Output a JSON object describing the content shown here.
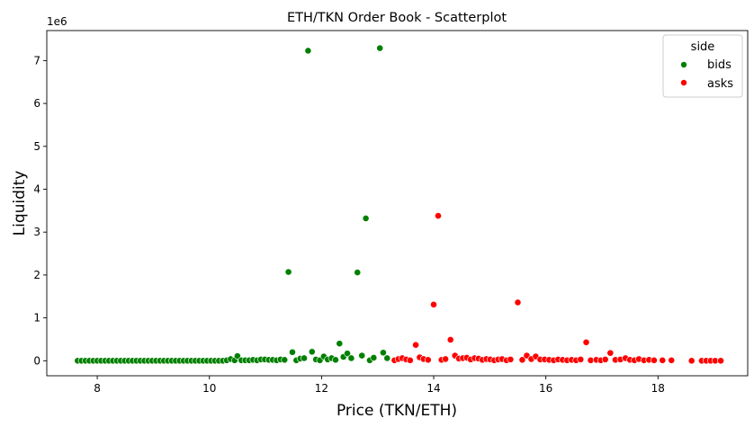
{
  "chart_data": {
    "type": "scatter",
    "title": "ETH/TKN Order Book - Scatterplot",
    "xlabel": "Price (TKN/ETH)",
    "ylabel": "Liquidity",
    "y_multiplier_label": "1e6",
    "xlim": [
      7.1,
      19.6
    ],
    "ylim": [
      -350000,
      7700000
    ],
    "x_ticks": [
      8,
      10,
      12,
      14,
      16,
      18
    ],
    "x_tick_labels": [
      "8",
      "10",
      "12",
      "14",
      "16",
      "18"
    ],
    "y_ticks": [
      0,
      1000000,
      2000000,
      3000000,
      4000000,
      5000000,
      6000000,
      7000000
    ],
    "y_tick_labels": [
      "0",
      "1",
      "2",
      "3",
      "4",
      "5",
      "6",
      "7"
    ],
    "grid": false,
    "legend": {
      "title": "side",
      "placement": "upper-right"
    },
    "series": [
      {
        "name": "bids",
        "color": "#008000",
        "points": [
          [
            7.65,
            0
          ],
          [
            7.72,
            0
          ],
          [
            7.79,
            0
          ],
          [
            7.86,
            0
          ],
          [
            7.93,
            0
          ],
          [
            8.0,
            0
          ],
          [
            8.07,
            0
          ],
          [
            8.14,
            0
          ],
          [
            8.21,
            0
          ],
          [
            8.28,
            0
          ],
          [
            8.35,
            0
          ],
          [
            8.42,
            0
          ],
          [
            8.49,
            0
          ],
          [
            8.56,
            0
          ],
          [
            8.63,
            0
          ],
          [
            8.7,
            0
          ],
          [
            8.77,
            0
          ],
          [
            8.84,
            0
          ],
          [
            8.91,
            0
          ],
          [
            8.98,
            0
          ],
          [
            9.05,
            0
          ],
          [
            9.12,
            0
          ],
          [
            9.19,
            0
          ],
          [
            9.26,
            0
          ],
          [
            9.33,
            0
          ],
          [
            9.4,
            0
          ],
          [
            9.47,
            0
          ],
          [
            9.54,
            0
          ],
          [
            9.61,
            0
          ],
          [
            9.68,
            0
          ],
          [
            9.75,
            0
          ],
          [
            9.82,
            0
          ],
          [
            9.89,
            0
          ],
          [
            9.96,
            0
          ],
          [
            10.03,
            0
          ],
          [
            10.1,
            0
          ],
          [
            10.17,
            0
          ],
          [
            10.24,
            0
          ],
          [
            10.31,
            10000
          ],
          [
            10.38,
            40000
          ],
          [
            10.45,
            10000
          ],
          [
            10.5,
            110000
          ],
          [
            10.57,
            10000
          ],
          [
            10.64,
            10000
          ],
          [
            10.71,
            10000
          ],
          [
            10.78,
            20000
          ],
          [
            10.85,
            10000
          ],
          [
            10.92,
            30000
          ],
          [
            10.99,
            30000
          ],
          [
            11.06,
            20000
          ],
          [
            11.13,
            20000
          ],
          [
            11.2,
            10000
          ],
          [
            11.27,
            30000
          ],
          [
            11.34,
            20000
          ],
          [
            11.41,
            2070000
          ],
          [
            11.48,
            200000
          ],
          [
            11.55,
            10000
          ],
          [
            11.62,
            50000
          ],
          [
            11.69,
            60000
          ],
          [
            11.76,
            7230000
          ],
          [
            11.83,
            210000
          ],
          [
            11.9,
            30000
          ],
          [
            11.97,
            10000
          ],
          [
            12.04,
            100000
          ],
          [
            12.11,
            30000
          ],
          [
            12.18,
            60000
          ],
          [
            12.25,
            20000
          ],
          [
            12.32,
            400000
          ],
          [
            12.39,
            90000
          ],
          [
            12.46,
            170000
          ],
          [
            12.53,
            60000
          ],
          [
            12.64,
            2060000
          ],
          [
            12.72,
            120000
          ],
          [
            12.79,
            3320000
          ],
          [
            12.86,
            10000
          ],
          [
            12.93,
            70000
          ],
          [
            13.04,
            7290000
          ],
          [
            13.1,
            190000
          ],
          [
            13.17,
            60000
          ]
        ]
      },
      {
        "name": "asks",
        "color": "#ff0000",
        "points": [
          [
            13.3,
            10000
          ],
          [
            13.37,
            40000
          ],
          [
            13.44,
            60000
          ],
          [
            13.51,
            30000
          ],
          [
            13.58,
            10000
          ],
          [
            13.68,
            370000
          ],
          [
            13.75,
            80000
          ],
          [
            13.82,
            40000
          ],
          [
            13.9,
            20000
          ],
          [
            14.0,
            1310000
          ],
          [
            14.08,
            3380000
          ],
          [
            14.14,
            20000
          ],
          [
            14.21,
            40000
          ],
          [
            14.3,
            490000
          ],
          [
            14.38,
            120000
          ],
          [
            14.45,
            50000
          ],
          [
            14.52,
            60000
          ],
          [
            14.59,
            70000
          ],
          [
            14.66,
            30000
          ],
          [
            14.73,
            60000
          ],
          [
            14.8,
            50000
          ],
          [
            14.87,
            20000
          ],
          [
            14.94,
            40000
          ],
          [
            15.01,
            30000
          ],
          [
            15.08,
            10000
          ],
          [
            15.15,
            30000
          ],
          [
            15.22,
            40000
          ],
          [
            15.3,
            10000
          ],
          [
            15.37,
            30000
          ],
          [
            15.5,
            1360000
          ],
          [
            15.58,
            20000
          ],
          [
            15.66,
            120000
          ],
          [
            15.74,
            40000
          ],
          [
            15.82,
            100000
          ],
          [
            15.9,
            30000
          ],
          [
            15.98,
            30000
          ],
          [
            16.06,
            20000
          ],
          [
            16.14,
            10000
          ],
          [
            16.22,
            30000
          ],
          [
            16.3,
            20000
          ],
          [
            16.38,
            10000
          ],
          [
            16.46,
            20000
          ],
          [
            16.54,
            10000
          ],
          [
            16.62,
            30000
          ],
          [
            16.72,
            430000
          ],
          [
            16.8,
            10000
          ],
          [
            16.9,
            20000
          ],
          [
            16.98,
            10000
          ],
          [
            17.06,
            30000
          ],
          [
            17.15,
            180000
          ],
          [
            17.24,
            20000
          ],
          [
            17.33,
            30000
          ],
          [
            17.42,
            60000
          ],
          [
            17.5,
            20000
          ],
          [
            17.58,
            10000
          ],
          [
            17.66,
            40000
          ],
          [
            17.75,
            10000
          ],
          [
            17.84,
            20000
          ],
          [
            17.93,
            10000
          ],
          [
            18.08,
            10000
          ],
          [
            18.24,
            10000
          ],
          [
            18.6,
            0
          ],
          [
            18.78,
            0
          ],
          [
            18.86,
            0
          ],
          [
            18.94,
            0
          ],
          [
            19.02,
            0
          ],
          [
            19.12,
            0
          ]
        ]
      }
    ]
  }
}
